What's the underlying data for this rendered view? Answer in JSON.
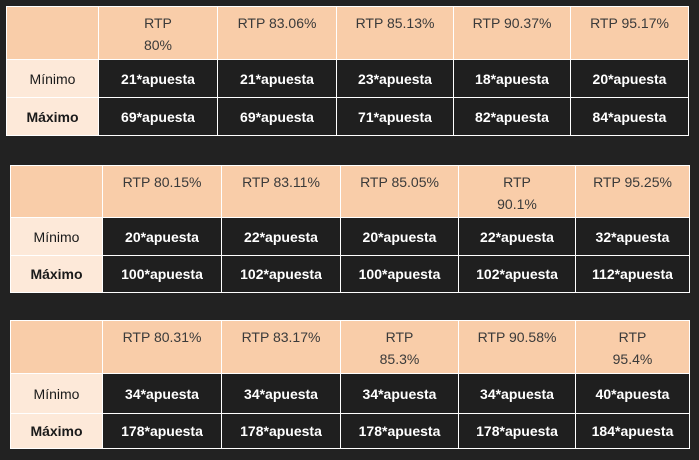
{
  "tables": [
    {
      "headers": [
        "RTP 80%",
        "RTP 83.06%",
        "RTP 85.13%",
        "RTP 90.37%",
        "RTP 95.17%"
      ],
      "min_label": "Mínimo",
      "max_label": "Máximo",
      "min": [
        "21*apuesta",
        "21*apuesta",
        "23*apuesta",
        "18*apuesta",
        "20*apuesta"
      ],
      "max": [
        "69*apuesta",
        "69*apuesta",
        "71*apuesta",
        "82*apuesta",
        "84*apuesta"
      ]
    },
    {
      "headers": [
        "RTP 80.15%",
        "RTP 83.11%",
        "RTP 85.05%",
        "RTP 90.1%",
        "RTP 95.25%"
      ],
      "min_label": "Mínimo",
      "max_label": "Máximo",
      "min": [
        "20*apuesta",
        "22*apuesta",
        "20*apuesta",
        "22*apuesta",
        "32*apuesta"
      ],
      "max": [
        "100*apuesta",
        "102*apuesta",
        "100*apuesta",
        "102*apuesta",
        "112*apuesta"
      ]
    },
    {
      "headers": [
        "RTP 80.31%",
        "RTP 83.17%",
        "RTP 85.3%",
        "RTP 90.58%",
        "RTP 95.4%"
      ],
      "min_label": "Mínimo",
      "max_label": "Máximo",
      "min": [
        "34*apuesta",
        "34*apuesta",
        "34*apuesta",
        "34*apuesta",
        "40*apuesta"
      ],
      "max": [
        "178*apuesta",
        "178*apuesta",
        "178*apuesta",
        "178*apuesta",
        "184*apuesta"
      ]
    }
  ]
}
